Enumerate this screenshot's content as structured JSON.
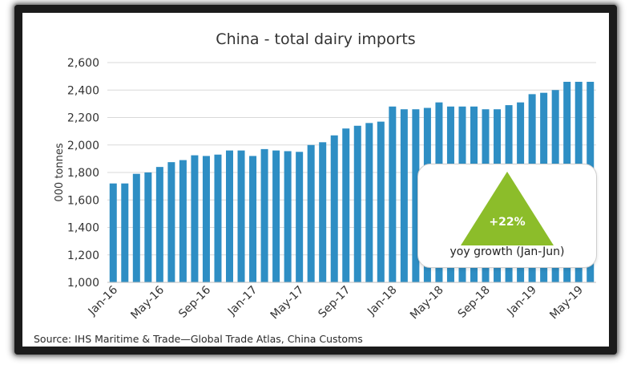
{
  "chart_data": {
    "type": "bar",
    "title": "China - total dairy imports",
    "ylabel": "000 tonnes",
    "xlabel": "",
    "ylim": [
      1000,
      2600
    ],
    "yticks": [
      1000,
      1200,
      1400,
      1600,
      1800,
      2000,
      2200,
      2400,
      2600
    ],
    "ytick_labels": [
      "1,000",
      "1,200",
      "1,400",
      "1,600",
      "1,800",
      "2,000",
      "2,200",
      "2,400",
      "2,600"
    ],
    "grid": true,
    "bar_color": "#2e8ec4",
    "categories": [
      "Jan-16",
      "Feb-16",
      "Mar-16",
      "Apr-16",
      "May-16",
      "Jun-16",
      "Jul-16",
      "Aug-16",
      "Sep-16",
      "Oct-16",
      "Nov-16",
      "Dec-16",
      "Jan-17",
      "Feb-17",
      "Mar-17",
      "Apr-17",
      "May-17",
      "Jun-17",
      "Jul-17",
      "Aug-17",
      "Sep-17",
      "Oct-17",
      "Nov-17",
      "Dec-17",
      "Jan-18",
      "Feb-18",
      "Mar-18",
      "Apr-18",
      "May-18",
      "Jun-18",
      "Jul-18",
      "Aug-18",
      "Sep-18",
      "Oct-18",
      "Nov-18",
      "Dec-18",
      "Jan-19",
      "Feb-19",
      "Mar-19",
      "Apr-19",
      "May-19",
      "Jun-19"
    ],
    "values": [
      1720,
      1720,
      1790,
      1800,
      1840,
      1875,
      1890,
      1925,
      1920,
      1930,
      1960,
      1960,
      1920,
      1970,
      1960,
      1955,
      1950,
      2000,
      2020,
      2070,
      2120,
      2140,
      2160,
      2170,
      2280,
      2260,
      2260,
      2270,
      2310,
      2280,
      2280,
      2280,
      2260,
      2260,
      2290,
      2310,
      2370,
      2380,
      2400,
      2460,
      2460,
      2460
    ],
    "xtick_labels": [
      "Jan-16",
      "May-16",
      "Sep-16",
      "Jan-17",
      "May-17",
      "Sep-17",
      "Jan-18",
      "May-18",
      "Sep-18",
      "Jan-19",
      "May-19"
    ],
    "xtick_indices": [
      0,
      4,
      8,
      12,
      16,
      20,
      24,
      28,
      32,
      36,
      40
    ]
  },
  "annotation": {
    "value": "+22%",
    "caption": "yoy growth (Jan-Jun)",
    "color": "#8cbd2a"
  },
  "source": "Source: IHS Maritime & Trade—Global Trade Atlas, China Customs"
}
